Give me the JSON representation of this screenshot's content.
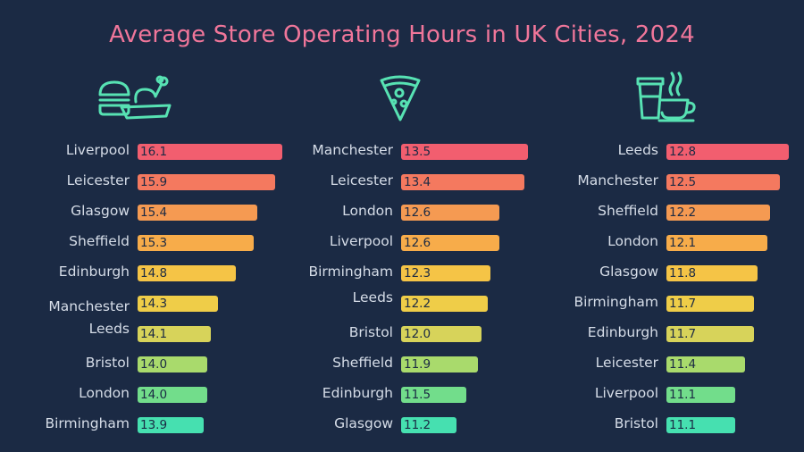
{
  "title": "Average Store Operating Hours in UK Cities, 2024",
  "icons": [
    "fast-food-icon",
    "pizza-slice-icon",
    "coffee-cup-icon"
  ],
  "colors": {
    "background": "#1b2a44",
    "title": "#f0769a",
    "icon_stroke": "#57e2b3",
    "text": "#d6dde8",
    "scale": [
      "#f25e6f",
      "#f4795f",
      "#f59a52",
      "#f7ac4a",
      "#f5c446",
      "#efcd48",
      "#d7d35a",
      "#a9da6c",
      "#72dd8b",
      "#46e0b0"
    ]
  },
  "chart_data": [
    {
      "type": "bar",
      "orientation": "horizontal",
      "categories": [
        "Liverpool",
        "Leicester",
        "Glasgow",
        "Sheffield",
        "Edinburgh",
        "Manchester",
        "Leeds",
        "Bristol",
        "London",
        "Birmingham"
      ],
      "values": [
        16.1,
        15.9,
        15.4,
        15.3,
        14.8,
        14.3,
        14.1,
        14.0,
        14.0,
        13.9
      ],
      "labels": [
        "16.1",
        "15.9",
        "15.4",
        "15.3",
        "14.8",
        "14.3",
        "14.1",
        "14.0",
        "14.0",
        "13.9"
      ]
    },
    {
      "type": "bar",
      "orientation": "horizontal",
      "categories": [
        "Manchester",
        "Leicester",
        "London",
        "Liverpool",
        "Birmingham",
        "Leeds",
        "Bristol",
        "Sheffield",
        "Edinburgh",
        "Glasgow"
      ],
      "values": [
        13.5,
        13.4,
        12.6,
        12.6,
        12.3,
        12.2,
        12.0,
        11.9,
        11.5,
        11.2
      ],
      "labels": [
        "13.5",
        "13.4",
        "12.6",
        "12.6",
        "12.3",
        "12.2",
        "12.0",
        "11.9",
        "11.5",
        "11.2"
      ]
    },
    {
      "type": "bar",
      "orientation": "horizontal",
      "categories": [
        "Leeds",
        "Manchester",
        "Sheffield",
        "London",
        "Glasgow",
        "Birmingham",
        "Edinburgh",
        "Leicester",
        "Liverpool",
        "Bristol"
      ],
      "values": [
        12.8,
        12.5,
        12.2,
        12.1,
        11.8,
        11.7,
        11.7,
        11.4,
        11.1,
        11.1
      ],
      "labels": [
        "12.8",
        "12.5",
        "12.2",
        "12.1",
        "11.8",
        "11.7",
        "11.7",
        "11.4",
        "11.1",
        "11.1"
      ]
    }
  ]
}
